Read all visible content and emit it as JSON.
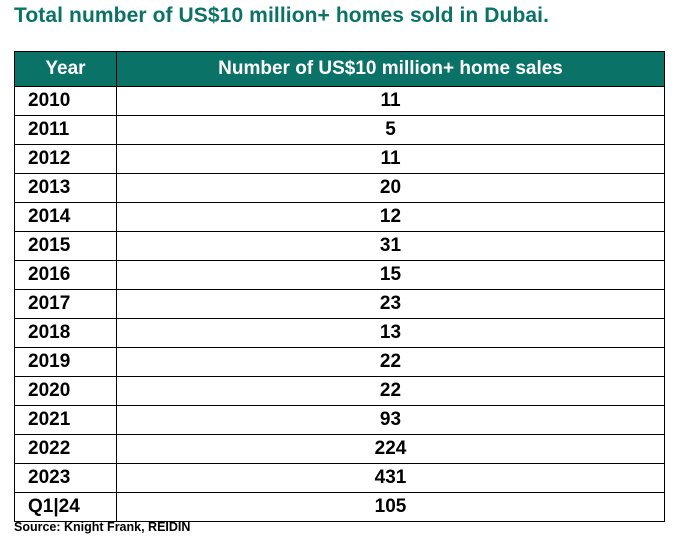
{
  "chart_data": {
    "type": "table",
    "title": "Total number of US$10 million+ homes sold in Dubai.",
    "columns": [
      "Year",
      "Number of US$10 million+ home sales"
    ],
    "rows": [
      {
        "year": "2010",
        "value": 11
      },
      {
        "year": "2011",
        "value": 5
      },
      {
        "year": "2012",
        "value": 11
      },
      {
        "year": "2013",
        "value": 20
      },
      {
        "year": "2014",
        "value": 12
      },
      {
        "year": "2015",
        "value": 31
      },
      {
        "year": "2016",
        "value": 15
      },
      {
        "year": "2017",
        "value": 23
      },
      {
        "year": "2018",
        "value": 13
      },
      {
        "year": "2019",
        "value": 22
      },
      {
        "year": "2020",
        "value": 22
      },
      {
        "year": "2021",
        "value": 93
      },
      {
        "year": "2022",
        "value": 224
      },
      {
        "year": "2023",
        "value": 431
      },
      {
        "year": "Q1|24",
        "value": 105
      }
    ],
    "source": "Source: Knight Frank, REIDIN"
  },
  "colors": {
    "header_bg": "#0a7266",
    "header_text": "#ffffff",
    "title_text": "#0a7266",
    "border": "#000000"
  }
}
